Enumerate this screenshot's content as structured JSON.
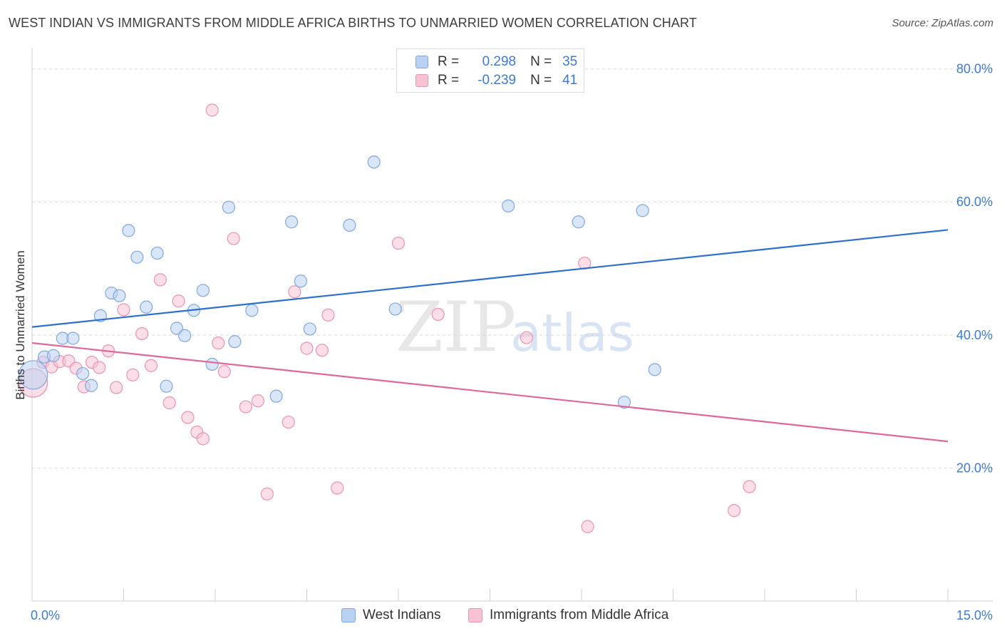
{
  "title": "WEST INDIAN VS IMMIGRANTS FROM MIDDLE AFRICA BIRTHS TO UNMARRIED WOMEN CORRELATION CHART",
  "source": "Source: ZipAtlas.com",
  "watermark": {
    "zip": "ZIP",
    "atlas": "atlas"
  },
  "legend": {
    "rows": [
      {
        "r_label": "R =",
        "r_value": "0.298",
        "n_label": "N =",
        "n_value": "35"
      },
      {
        "r_label": "R =",
        "r_value": "-0.239",
        "n_label": "N =",
        "n_value": "41"
      }
    ]
  },
  "bottom_legend": [
    "West Indians",
    "Immigrants from Middle Africa"
  ],
  "colors": {
    "blue_fill": "#b9d1f3",
    "blue_stroke": "#7fa8e0",
    "blue_line": "#2f6fce",
    "pink_fill": "#f7c3d3",
    "pink_stroke": "#eb93b0",
    "pink_line": "#e0679a",
    "axis_label": "#3c7bd0",
    "grid": "#d9d9d9"
  },
  "chart_data": {
    "type": "scatter",
    "xlabel": "",
    "ylabel": "Births to Unmarried Women",
    "xlim": [
      0,
      15
    ],
    "ylim": [
      0,
      82
    ],
    "x_tick_labels": [
      "0.0%",
      "15.0%"
    ],
    "y_ticks": [
      20,
      40,
      60,
      80
    ],
    "y_tick_labels": [
      "20.0%",
      "40.0%",
      "60.0%",
      "80.0%"
    ],
    "grid": true,
    "legend_position": "top-center",
    "series": [
      {
        "name": "West Indians",
        "r": 0.298,
        "n": 35,
        "trend": {
          "x": [
            0,
            15
          ],
          "y": [
            41.2,
            55.8
          ]
        },
        "points": [
          {
            "x": 0.02,
            "y": 34.0,
            "big": true
          },
          {
            "x": 0.2,
            "y": 36.7
          },
          {
            "x": 0.35,
            "y": 36.9
          },
          {
            "x": 0.5,
            "y": 39.5
          },
          {
            "x": 0.67,
            "y": 39.5
          },
          {
            "x": 0.83,
            "y": 34.2
          },
          {
            "x": 0.97,
            "y": 32.4
          },
          {
            "x": 1.12,
            "y": 42.9
          },
          {
            "x": 1.3,
            "y": 46.3
          },
          {
            "x": 1.43,
            "y": 45.9
          },
          {
            "x": 1.58,
            "y": 55.7
          },
          {
            "x": 1.72,
            "y": 51.7
          },
          {
            "x": 1.87,
            "y": 44.2
          },
          {
            "x": 2.05,
            "y": 52.3
          },
          {
            "x": 2.2,
            "y": 32.3
          },
          {
            "x": 2.37,
            "y": 41.0
          },
          {
            "x": 2.5,
            "y": 39.9
          },
          {
            "x": 2.65,
            "y": 43.7
          },
          {
            "x": 2.8,
            "y": 46.7
          },
          {
            "x": 2.95,
            "y": 35.6
          },
          {
            "x": 3.22,
            "y": 59.2
          },
          {
            "x": 3.32,
            "y": 39.0
          },
          {
            "x": 3.6,
            "y": 43.7
          },
          {
            "x": 4.0,
            "y": 30.8
          },
          {
            "x": 4.25,
            "y": 57.0
          },
          {
            "x": 4.4,
            "y": 48.1
          },
          {
            "x": 4.55,
            "y": 40.9
          },
          {
            "x": 5.2,
            "y": 56.5
          },
          {
            "x": 5.6,
            "y": 66.0
          },
          {
            "x": 5.95,
            "y": 43.9
          },
          {
            "x": 7.8,
            "y": 59.4
          },
          {
            "x": 8.95,
            "y": 57.0
          },
          {
            "x": 9.7,
            "y": 29.9
          },
          {
            "x": 10.0,
            "y": 58.7
          },
          {
            "x": 10.2,
            "y": 34.8
          }
        ]
      },
      {
        "name": "Immigrants from Middle Africa",
        "r": -0.239,
        "n": 41,
        "trend": {
          "x": [
            0,
            15
          ],
          "y": [
            38.8,
            24.0
          ]
        },
        "points": [
          {
            "x": 0.02,
            "y": 32.8,
            "big": true
          },
          {
            "x": 0.18,
            "y": 35.9
          },
          {
            "x": 0.32,
            "y": 35.2
          },
          {
            "x": 0.45,
            "y": 36.0
          },
          {
            "x": 0.6,
            "y": 36.1
          },
          {
            "x": 0.72,
            "y": 35.0
          },
          {
            "x": 0.85,
            "y": 32.2
          },
          {
            "x": 0.98,
            "y": 35.9
          },
          {
            "x": 1.1,
            "y": 35.1
          },
          {
            "x": 1.25,
            "y": 37.6
          },
          {
            "x": 1.38,
            "y": 32.1
          },
          {
            "x": 1.5,
            "y": 43.8
          },
          {
            "x": 1.65,
            "y": 34.0
          },
          {
            "x": 1.8,
            "y": 40.2
          },
          {
            "x": 1.95,
            "y": 35.4
          },
          {
            "x": 2.1,
            "y": 48.3
          },
          {
            "x": 2.25,
            "y": 29.8
          },
          {
            "x": 2.4,
            "y": 45.1
          },
          {
            "x": 2.55,
            "y": 27.6
          },
          {
            "x": 2.7,
            "y": 25.4
          },
          {
            "x": 2.8,
            "y": 24.4
          },
          {
            "x": 2.95,
            "y": 73.8
          },
          {
            "x": 3.05,
            "y": 38.8
          },
          {
            "x": 3.15,
            "y": 34.5
          },
          {
            "x": 3.3,
            "y": 54.5
          },
          {
            "x": 3.5,
            "y": 29.2
          },
          {
            "x": 3.7,
            "y": 30.1
          },
          {
            "x": 3.85,
            "y": 16.1
          },
          {
            "x": 4.2,
            "y": 26.9
          },
          {
            "x": 4.3,
            "y": 46.5
          },
          {
            "x": 4.5,
            "y": 38.0
          },
          {
            "x": 4.75,
            "y": 37.7
          },
          {
            "x": 4.85,
            "y": 43.0
          },
          {
            "x": 5.0,
            "y": 17.0
          },
          {
            "x": 6.0,
            "y": 53.8
          },
          {
            "x": 6.65,
            "y": 43.1
          },
          {
            "x": 8.1,
            "y": 39.6
          },
          {
            "x": 9.05,
            "y": 50.8
          },
          {
            "x": 9.1,
            "y": 11.2
          },
          {
            "x": 11.5,
            "y": 13.6
          },
          {
            "x": 11.75,
            "y": 17.2
          }
        ]
      }
    ]
  }
}
